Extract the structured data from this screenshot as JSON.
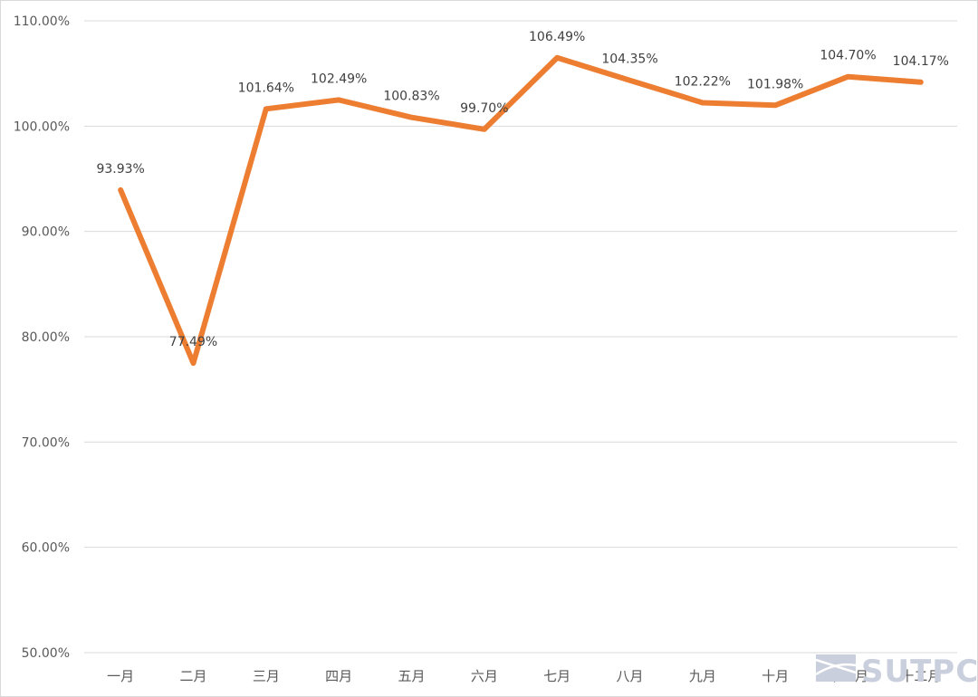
{
  "chart_data": {
    "type": "line",
    "title": "",
    "xlabel": "",
    "ylabel": "",
    "categories": [
      "一月",
      "二月",
      "三月",
      "四月",
      "五月",
      "六月",
      "七月",
      "八月",
      "九月",
      "十月",
      "十一月",
      "十二月"
    ],
    "series": [
      {
        "values": [
          93.93,
          77.49,
          101.64,
          102.49,
          100.83,
          99.7,
          106.49,
          104.35,
          102.22,
          101.98,
          104.7,
          104.17
        ],
        "labels": [
          "93.93%",
          "77.49%",
          "101.64%",
          "102.49%",
          "100.83%",
          "99.70%",
          "106.49%",
          "104.35%",
          "102.22%",
          "101.98%",
          "104.70%",
          "104.17%"
        ],
        "color": "#ed7d31"
      }
    ],
    "ylim": [
      50,
      110
    ],
    "yticks": [
      50,
      60,
      70,
      80,
      90,
      100,
      110
    ],
    "ytick_labels": [
      "50.00%",
      "60.00%",
      "70.00%",
      "80.00%",
      "90.00%",
      "100.00%",
      "110.00%"
    ],
    "grid": true,
    "legend": "none"
  },
  "watermark": {
    "text": "SUTPC",
    "color": "#c9cfdc",
    "logo_icon": "sutpc-logo-icon"
  }
}
